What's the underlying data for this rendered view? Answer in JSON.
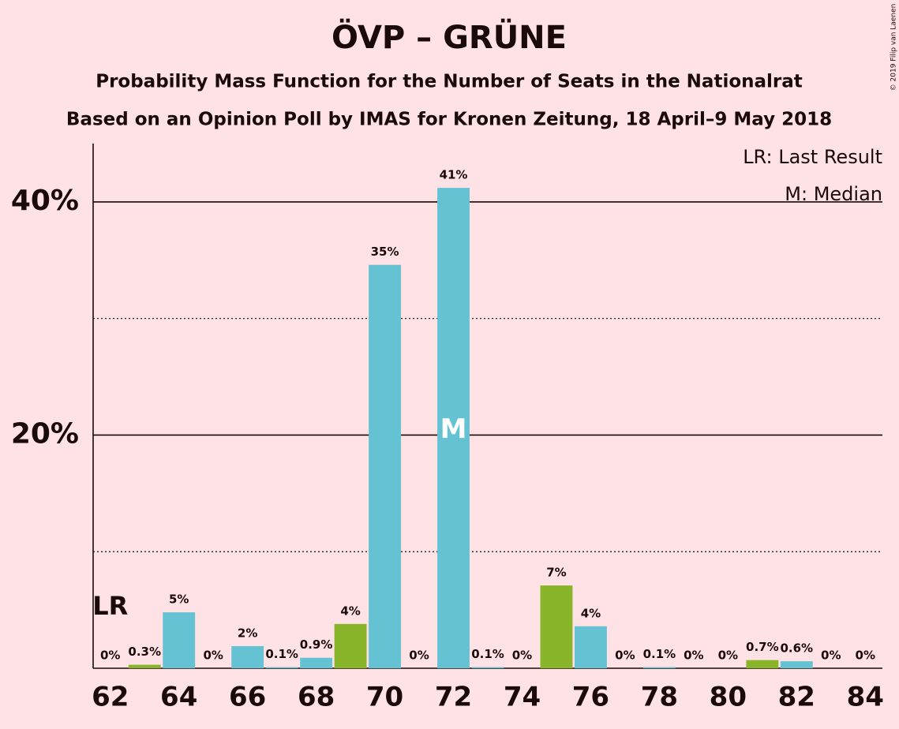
{
  "chart_data": {
    "type": "bar",
    "title": "ÖVP – GRÜNE",
    "subtitle": "Probability Mass Function for the Number of Seats in the Nationalrat",
    "subtitle2": "Based on an Opinion Poll by IMAS for Kronen Zeitung, 18 April–9 May 2018",
    "copyright": "© 2019 Filip van Laenen",
    "legend": [
      "LR: Last Result",
      "M: Median"
    ],
    "last_result_label": "LR",
    "median_label": "M",
    "last_result": 62,
    "median": 72,
    "categories": [
      62,
      null,
      64,
      null,
      66,
      null,
      68,
      null,
      70,
      null,
      72,
      null,
      74,
      null,
      76,
      null,
      78,
      null,
      80,
      null,
      82,
      null,
      84
    ],
    "values": [
      0,
      0.3,
      4.8,
      0,
      1.9,
      0.1,
      0.9,
      3.8,
      34.6,
      0,
      41.2,
      0.1,
      0,
      7.1,
      3.6,
      0,
      0.1,
      0,
      0,
      0.7,
      0.6,
      0,
      0
    ],
    "value_labels": [
      "0%",
      "0.3%",
      "5%",
      "0%",
      "2%",
      "0.1%",
      "0.9%",
      "4%",
      "35%",
      "0%",
      "41%",
      "0.1%",
      "0%",
      "7%",
      "4%",
      "0%",
      "0.1%",
      "0%",
      "0%",
      "0.7%",
      "0.6%",
      "0%",
      "0%"
    ],
    "colors": [
      "#65c2d2",
      "#88b52a",
      "#65c2d2",
      "#65c2d2",
      "#65c2d2",
      "#65c2d2",
      "#65c2d2",
      "#88b52a",
      "#65c2d2",
      "#65c2d2",
      "#65c2d2",
      "#65c2d2",
      "#65c2d2",
      "#88b52a",
      "#65c2d2",
      "#65c2d2",
      "#65c2d2",
      "#65c2d2",
      "#65c2d2",
      "#88b52a",
      "#65c2d2",
      "#65c2d2",
      "#65c2d2"
    ],
    "ylim": [
      0,
      45
    ],
    "yticks": [
      {
        "value": 20,
        "label": "20%"
      },
      {
        "value": 40,
        "label": "40%"
      }
    ],
    "minor_yticks": [
      10,
      30
    ],
    "grid": true
  }
}
